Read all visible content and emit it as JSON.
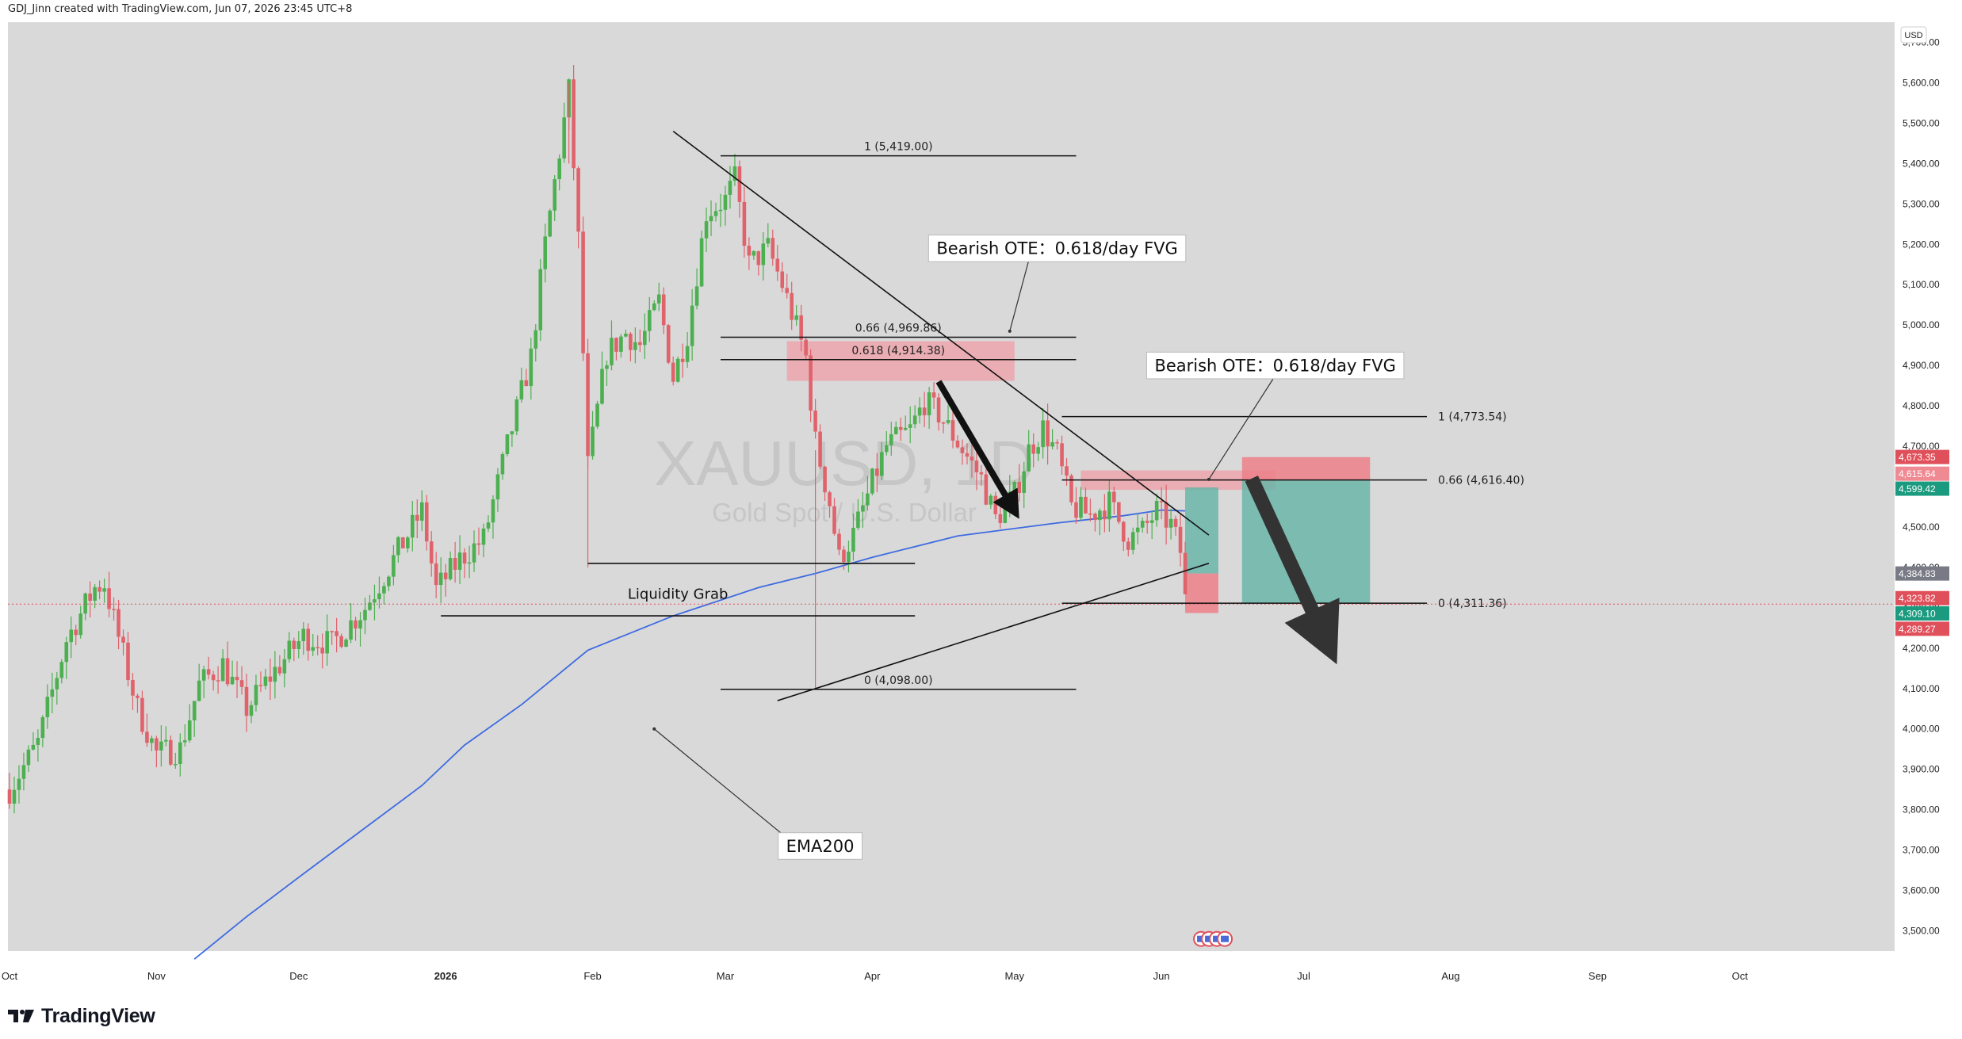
{
  "header": {
    "credit": "GDJ_Jinn created with TradingView.com, Jun 07, 2026 23:45 UTC+8"
  },
  "footer": {
    "brand": "TradingView"
  },
  "currency": "USD",
  "watermark": {
    "symbol": "XAUUSD, 1D",
    "description": "Gold Spot / U.S. Dollar"
  },
  "colors": {
    "background": "#d9d9d9",
    "up": "#4caf50",
    "down": "#e0626b",
    "ema": "#3d6be0",
    "fvg": "#ef9aa3",
    "long_zone": "#6ab5a8",
    "stop_zone": "#ec7f88",
    "line": "#111111"
  },
  "chart_data": {
    "type": "candlestick",
    "symbol": "XAUUSD",
    "timeframe": "1D",
    "ylim": [
      3450,
      5750
    ],
    "y_ticks": [
      "5,700.00",
      "5,600.00",
      "5,500.00",
      "5,400.00",
      "5,300.00",
      "5,200.00",
      "5,100.00",
      "5,000.00",
      "4,900.00",
      "4,800.00",
      "4,700.00",
      "4,600.00",
      "4,500.00",
      "4,400.00",
      "4,300.00",
      "4,200.00",
      "4,100.00",
      "4,000.00",
      "3,900.00",
      "3,800.00",
      "3,700.00",
      "3,600.00",
      "3,500.00"
    ],
    "x_labels": [
      {
        "label": "Oct",
        "x": 0
      },
      {
        "label": "Nov",
        "x": 31
      },
      {
        "label": "Dec",
        "x": 61
      },
      {
        "label": "2026",
        "x": 92,
        "bold": true
      },
      {
        "label": "Feb",
        "x": 123
      },
      {
        "label": "Mar",
        "x": 151
      },
      {
        "label": "Apr",
        "x": 182
      },
      {
        "label": "May",
        "x": 212
      },
      {
        "label": "Jun",
        "x": 243
      },
      {
        "label": "Jul",
        "x": 273
      },
      {
        "label": "Aug",
        "x": 304
      },
      {
        "label": "Sep",
        "x": 335
      },
      {
        "label": "Oct",
        "x": 365
      }
    ],
    "price_tags": [
      {
        "value": "4,673.35",
        "color": "#e0505b",
        "y": 4673.35
      },
      {
        "value": "4,615.64",
        "color": "#f08a92",
        "y": 4632
      },
      {
        "value": "4,599.42",
        "color": "#1a9a7e",
        "y": 4595
      },
      {
        "value": "4,384.83",
        "color": "#787b86",
        "y": 4384.83
      },
      {
        "value": "4,323.82",
        "color": "#e0505b",
        "y": 4323.82
      },
      {
        "value": "4,309.10",
        "color": "#1a9a7e",
        "y": 4286
      },
      {
        "value": "4,289.27",
        "color": "#e0505b",
        "y": 4248
      }
    ],
    "current_price": 4309.1,
    "candles": [],
    "anchors": [
      [
        0,
        3850
      ],
      [
        6,
        3965
      ],
      [
        12,
        4220
      ],
      [
        18,
        4350
      ],
      [
        20,
        4360
      ],
      [
        27,
        4050
      ],
      [
        31,
        3940
      ],
      [
        36,
        3950
      ],
      [
        40,
        4110
      ],
      [
        45,
        4160
      ],
      [
        50,
        4050
      ],
      [
        55,
        4130
      ],
      [
        62,
        4230
      ],
      [
        68,
        4210
      ],
      [
        75,
        4300
      ],
      [
        82,
        4440
      ],
      [
        87,
        4540
      ],
      [
        90,
        4345
      ],
      [
        95,
        4420
      ],
      [
        100,
        4470
      ],
      [
        105,
        4700
      ],
      [
        110,
        4920
      ],
      [
        113,
        5200
      ],
      [
        116,
        5430
      ],
      [
        118,
        5580
      ],
      [
        120,
        5210
      ],
      [
        122,
        4650
      ],
      [
        126,
        4930
      ],
      [
        130,
        4980
      ],
      [
        133,
        4950
      ],
      [
        137,
        5060
      ],
      [
        140,
        4870
      ],
      [
        143,
        4980
      ],
      [
        147,
        5280
      ],
      [
        151,
        5310
      ],
      [
        153,
        5360
      ],
      [
        156,
        5150
      ],
      [
        160,
        5190
      ],
      [
        163,
        5100
      ],
      [
        165,
        5030
      ],
      [
        168,
        4920
      ],
      [
        170,
        4710
      ],
      [
        173,
        4560
      ],
      [
        175,
        4420
      ],
      [
        178,
        4480
      ],
      [
        182,
        4610
      ],
      [
        185,
        4700
      ],
      [
        190,
        4740
      ],
      [
        193,
        4810
      ],
      [
        196,
        4780
      ],
      [
        200,
        4710
      ],
      [
        205,
        4620
      ],
      [
        208,
        4520
      ],
      [
        212,
        4580
      ],
      [
        215,
        4690
      ],
      [
        218,
        4745
      ],
      [
        221,
        4680
      ],
      [
        224,
        4550
      ],
      [
        228,
        4530
      ],
      [
        232,
        4560
      ],
      [
        236,
        4470
      ],
      [
        239,
        4490
      ],
      [
        242,
        4540
      ],
      [
        245,
        4505
      ],
      [
        247,
        4440
      ],
      [
        248,
        4320
      ]
    ],
    "ema200": [
      [
        39,
        3430
      ],
      [
        50,
        3535
      ],
      [
        63,
        3650
      ],
      [
        75,
        3755
      ],
      [
        87,
        3860
      ],
      [
        96,
        3960
      ],
      [
        108,
        4060
      ],
      [
        122,
        4195
      ],
      [
        140,
        4280
      ],
      [
        158,
        4350
      ],
      [
        170,
        4385
      ],
      [
        182,
        4425
      ],
      [
        200,
        4478
      ],
      [
        221,
        4510
      ],
      [
        235,
        4528
      ],
      [
        243,
        4542
      ],
      [
        248,
        4540
      ]
    ],
    "fib_levels": [
      {
        "label": "1 (5,419.00)",
        "y": 5419.0,
        "x1": 150,
        "x2": 225
      },
      {
        "label": "0.66 (4,969.86)",
        "y": 4969.86,
        "x1": 150,
        "x2": 225
      },
      {
        "label": "0.618 (4,914.38)",
        "y": 4914.38,
        "x1": 150,
        "x2": 225
      },
      {
        "label": "0 (4,098.00)",
        "y": 4098.0,
        "x1": 150,
        "x2": 225
      },
      {
        "label": "1 (4,773.54)",
        "y": 4773.54,
        "x1": 222,
        "x2": 299
      },
      {
        "label": "0.66 (4,616.40)",
        "y": 4616.4,
        "x1": 222,
        "x2": 299
      },
      {
        "label": "0 (4,311.36)",
        "y": 4311.36,
        "x1": 222,
        "x2": 299
      }
    ],
    "zones": [
      {
        "name": "fvg-zone-upper",
        "x1": 164,
        "x2": 212,
        "y1": 4960,
        "y2": 4862,
        "color": "#ef9aa3",
        "opacity": 0.7
      },
      {
        "name": "fvg-zone-lower",
        "x1": 226,
        "x2": 267,
        "y1": 4640,
        "y2": 4592,
        "color": "#ef9aa3",
        "opacity": 0.7
      },
      {
        "name": "stop-zone-small",
        "x1": 248,
        "x2": 255,
        "y1": 4385,
        "y2": 4287,
        "color": "#ec7f88",
        "opacity": 0.85
      },
      {
        "name": "target-zone-small",
        "x1": 248,
        "x2": 255,
        "y1": 4598,
        "y2": 4385,
        "color": "#6ab5a8",
        "opacity": 0.85
      },
      {
        "name": "stop-zone-large",
        "x1": 260,
        "x2": 287,
        "y1": 4673,
        "y2": 4615,
        "color": "#ec7f88",
        "opacity": 0.85
      },
      {
        "name": "target-zone-large",
        "x1": 260,
        "x2": 287,
        "y1": 4615,
        "y2": 4311,
        "color": "#6ab5a8",
        "opacity": 0.85
      }
    ],
    "trend_lines": [
      {
        "name": "descending-trendline",
        "from": [
          140,
          5480
        ],
        "to": [
          253,
          4480
        ]
      },
      {
        "name": "ascending-trendline",
        "from": [
          162,
          4070
        ],
        "to": [
          253,
          4410
        ]
      },
      {
        "name": "liquidity-grab-line",
        "from": [
          122,
          4410
        ],
        "to": [
          191,
          4410
        ]
      },
      {
        "name": "liquidity-grab-low-line",
        "from": [
          91,
          4280
        ],
        "to": [
          191,
          4280
        ]
      }
    ],
    "arrows": [
      {
        "name": "bearish-arrow-small",
        "from": [
          196,
          4860
        ],
        "to": [
          213,
          4520
        ],
        "color": "#111111"
      },
      {
        "name": "bearish-arrow-large",
        "from": [
          262,
          4620
        ],
        "to": [
          280,
          4160
        ],
        "color": "#333333"
      }
    ],
    "annotations": [
      {
        "text": "Bearish OTE：0.618/day FVG",
        "x": 221,
        "y": 5190,
        "box": true
      },
      {
        "text": "Bearish OTE：0.618/day FVG",
        "x": 267,
        "y": 4900,
        "box": true
      },
      {
        "text": "Liquidity Grab",
        "x": 141,
        "y": 4335,
        "box": false
      },
      {
        "text": "EMA200",
        "x": 171,
        "y": 3710,
        "box": true
      }
    ],
    "callouts": [
      {
        "from": [
          215,
          5160
        ],
        "to": [
          211,
          4985
        ]
      },
      {
        "from": [
          267,
          4875
        ],
        "to": [
          253,
          4618
        ]
      },
      {
        "from": [
          164,
          3730
        ],
        "to": [
          136,
          4000
        ]
      }
    ],
    "event_icons": {
      "x": 248,
      "y": 3480,
      "count": 4
    },
    "grid": false,
    "legend": "none"
  }
}
